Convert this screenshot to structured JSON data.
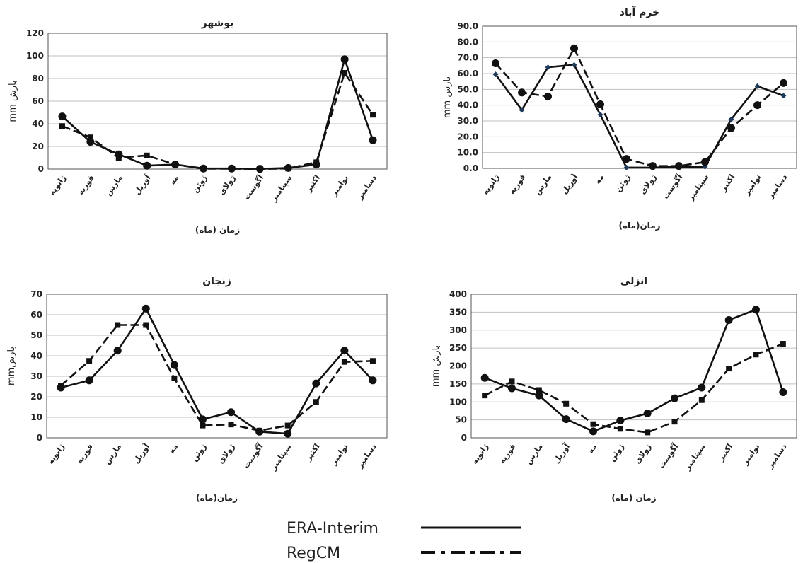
{
  "months": [
    "ژانویه",
    "فوریه",
    "مارس",
    "آوریل",
    "مه",
    "ژوئن",
    "ژولای",
    "آگوست",
    "سپتامبر",
    "اکتبر",
    "نوامبر",
    "دسامبر"
  ],
  "legend": [
    {
      "label": "ERA-Interim",
      "style": "solid"
    },
    {
      "label": "RegCM",
      "style": "dashdot"
    }
  ],
  "colors": {
    "era": "#111111",
    "regcm": "#111111",
    "regcm_markers_khorramabad": "#1f3b5c",
    "grid": "#bfbfbf",
    "axis": "#555555"
  },
  "chart_data": [
    {
      "type": "line",
      "title": "بوشهر",
      "xlabel": "زمان (ماه)",
      "ylabel": "mm بارش",
      "ylim": [
        0,
        120
      ],
      "yticks": [
        "0",
        "20",
        "40",
        "60",
        "80",
        "100",
        "120"
      ],
      "grid": true,
      "series": [
        {
          "name": "ERA-Interim",
          "values": [
            46.5,
            24,
            13,
            3,
            4,
            0.5,
            0.5,
            0.2,
            1,
            4,
            97,
            25.5
          ]
        },
        {
          "name": "RegCM",
          "values": [
            38,
            28,
            10,
            12,
            4,
            0.3,
            0.3,
            0.2,
            0.5,
            6,
            85,
            48
          ]
        }
      ]
    },
    {
      "type": "line",
      "title": "خرم آباد",
      "xlabel": "زمان(ماه)",
      "ylabel": "mm بارش",
      "ylim": [
        0,
        90
      ],
      "yticks": [
        "0.0",
        "10.0",
        "20.0",
        "30.0",
        "40.0",
        "50.0",
        "60.0",
        "70.0",
        "80.0",
        "90.0"
      ],
      "grid": true,
      "series": [
        {
          "name": "ERA-Interim",
          "values": [
            59.5,
            37,
            64,
            65.5,
            34,
            0.5,
            0.5,
            1,
            1,
            31,
            52,
            46
          ]
        },
        {
          "name": "RegCM",
          "values": [
            66.5,
            48,
            45.5,
            76,
            40.5,
            6,
            1.5,
            1.5,
            4,
            25.5,
            40,
            54
          ]
        }
      ]
    },
    {
      "type": "line",
      "title": "زنجان",
      "xlabel": "زمان(ماه)",
      "ylabel": "mmبارش",
      "ylim": [
        0,
        70
      ],
      "yticks": [
        "0",
        "10",
        "20",
        "30",
        "40",
        "50",
        "60",
        "70"
      ],
      "grid": true,
      "series": [
        {
          "name": "ERA-Interim",
          "values": [
            24.5,
            28,
            42.5,
            63,
            35.5,
            9,
            12.5,
            3,
            2,
            26.5,
            42.5,
            28
          ]
        },
        {
          "name": "RegCM",
          "values": [
            25.5,
            37.5,
            55,
            55,
            29,
            6,
            6.5,
            3.5,
            6,
            17.5,
            37,
            37.5
          ]
        }
      ]
    },
    {
      "type": "line",
      "title": "انزلی",
      "xlabel": "زمان (ماه)",
      "ylabel": "mm بارش",
      "ylim": [
        0,
        400
      ],
      "yticks": [
        "0",
        "50",
        "100",
        "150",
        "200",
        "250",
        "300",
        "350",
        "400"
      ],
      "grid": true,
      "series": [
        {
          "name": "ERA-Interim",
          "values": [
            167,
            138,
            118,
            52,
            18,
            48,
            68,
            110,
            140,
            328,
            357,
            127
          ]
        },
        {
          "name": "RegCM",
          "values": [
            118,
            157,
            133,
            95,
            38,
            25,
            15,
            45,
            105,
            193,
            232,
            262
          ]
        }
      ]
    }
  ]
}
